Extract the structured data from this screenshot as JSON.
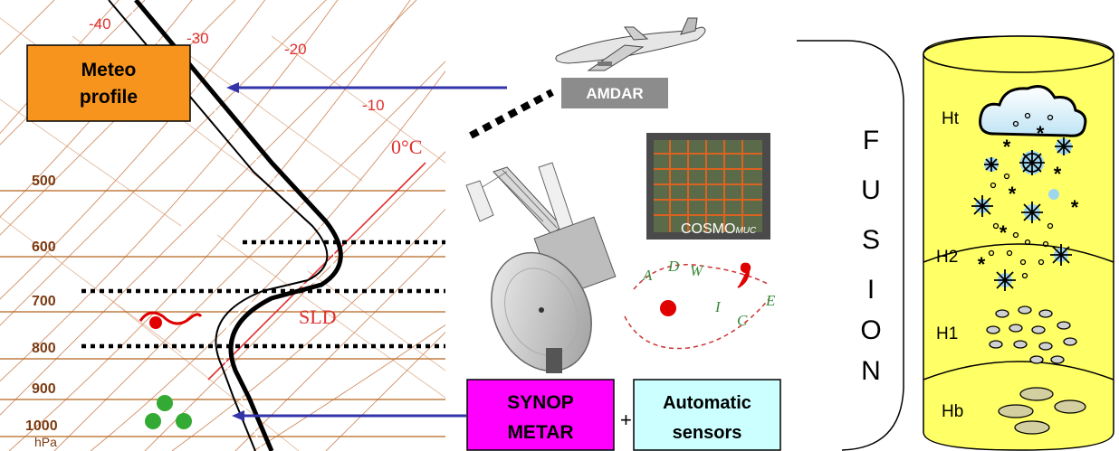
{
  "skewt": {
    "isotherms": [
      "-40",
      "-30",
      "-20",
      "-10"
    ],
    "zero_label": "0°C",
    "pressures": [
      "500",
      "600",
      "700",
      "800",
      "900",
      "1000"
    ],
    "unit": "hPa",
    "sld_label": "SLD"
  },
  "boxes": {
    "meteo": "Meteo profile",
    "meteo_l1": "Meteo",
    "meteo_l2": "profile",
    "amdar": "AMDAR",
    "synop_l1": "SYNOP",
    "synop_l2": "METAR",
    "plus": "+",
    "auto_l1": "Automatic",
    "auto_l2": "sensors",
    "cosmo": "COSMO",
    "cosmo_sub": "MUC"
  },
  "fusion": {
    "letters": [
      "F",
      "U",
      "S",
      "I",
      "O",
      "N"
    ]
  },
  "adwice": {
    "letters": [
      "A",
      "D",
      "W",
      "I",
      "C",
      "E"
    ]
  },
  "column": {
    "levels": [
      "Ht",
      "H2",
      "H1",
      "Hb"
    ]
  },
  "colors": {
    "meteo_box": "#f7941d",
    "synop_box": "#ff00ff",
    "auto_box": "#ccffff",
    "amdar_box": "#8c8c8c",
    "arrow": "#3333aa",
    "grid": "#b5651d",
    "grid_red": "#e03030",
    "column": "#ffff66"
  }
}
